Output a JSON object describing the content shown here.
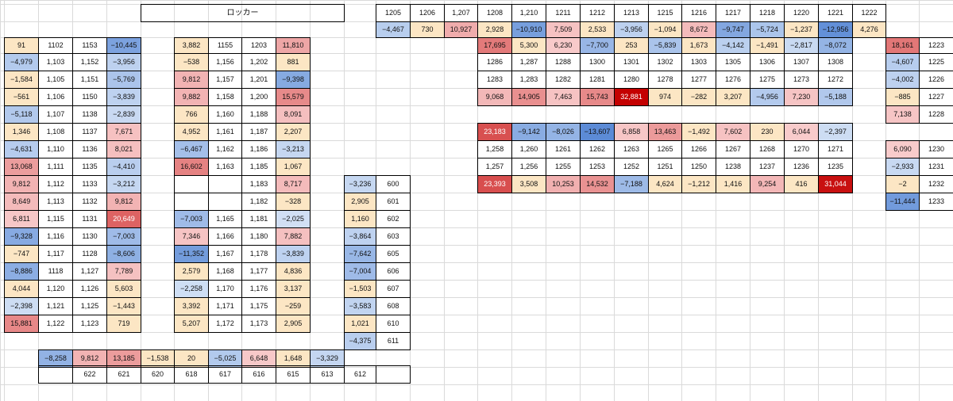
{
  "colors": {
    "gridline": "#dadada",
    "border": "#000000",
    "text": "#111111",
    "scale_min": "#5a8ad6",
    "scale_mid": "#fcfcfc",
    "scale_max": "#c40000",
    "weak_negative": "#fce6c4"
  },
  "row_tops": [
    0,
    5,
    27,
    47,
    67,
    89,
    111,
    133,
    155,
    177,
    199,
    221,
    243,
    265,
    287,
    309,
    331,
    353,
    375,
    397,
    419,
    441,
    463,
    485,
    506
  ],
  "col_lefts": [
    0,
    5,
    48,
    91,
    134,
    177,
    219,
    262,
    304,
    347,
    390,
    433,
    473,
    516,
    559,
    601,
    644,
    687,
    730,
    773,
    816,
    858,
    901,
    944,
    987,
    1030,
    1073,
    1115,
    1157,
    1200
  ],
  "blocks": [
    {
      "id": "locker",
      "rows": [
        [
          {
            "text": "ロッカー",
            "bg": "plain",
            "cls": "title",
            "bordered": true,
            "span": 6
          }
        ]
      ],
      "row0": 1,
      "col0": 5
    },
    {
      "id": "top-header",
      "rows": [
        [
          "1205",
          "1206",
          "1,207",
          "1208",
          "1,210",
          "1211",
          "1212",
          "1213",
          "1215",
          "1216",
          "1217",
          "1218",
          "1220",
          "1221",
          "1222"
        ],
        [
          -4467,
          730,
          10927,
          2928,
          -10910,
          7509,
          2533,
          -3956,
          -1094,
          8672,
          -9747,
          -5724,
          -1237,
          -12956,
          4276
        ]
      ],
      "row0": 1,
      "col0": 12,
      "bordered": true
    },
    {
      "id": "block-a",
      "rows": [
        [
          91,
          "1102",
          "1153",
          -10445
        ],
        [
          -4979,
          "1,103",
          "1,152",
          -3956
        ],
        [
          -1584,
          "1,105",
          "1,151",
          -5769
        ],
        [
          -561,
          "1,106",
          "1150",
          -3839
        ],
        [
          -5118,
          "1,107",
          "1138",
          -2839
        ],
        [
          1346,
          "1,108",
          "1137",
          7671
        ],
        [
          -4631,
          "1,110",
          "1136",
          8021
        ],
        [
          13068,
          "1,111",
          "1135",
          -4410
        ],
        [
          9812,
          "1,112",
          "1133",
          -3212
        ],
        [
          8649,
          "1,113",
          "1132",
          9812
        ],
        [
          6811,
          "1,115",
          "1131",
          20649
        ],
        [
          -9328,
          "1,116",
          "1130",
          -7003
        ],
        [
          -747,
          "1,117",
          "1128",
          -8606
        ],
        [
          -8886,
          "1118",
          "1,127",
          7789
        ],
        [
          4044,
          "1,120",
          "1,126",
          5603
        ],
        [
          -2398,
          "1,121",
          "1,125",
          -1443
        ],
        [
          15881,
          "1,122",
          "1,123",
          719
        ]
      ],
      "row0": 3,
      "col0": 1,
      "bordered": true
    },
    {
      "id": "block-b",
      "rows": [
        [
          3882,
          "1155",
          "1203",
          11810
        ],
        [
          -538,
          "1,156",
          "1,202",
          881
        ],
        [
          9812,
          "1,157",
          "1,201",
          -9398
        ],
        [
          9882,
          "1,158",
          "1,200",
          15579
        ],
        [
          766,
          "1,160",
          "1,188",
          8091
        ],
        [
          4952,
          "1,161",
          "1,187",
          2207
        ],
        [
          -6467,
          "1,162",
          "1,186",
          -3213
        ],
        [
          16602,
          "1,163",
          "1,185",
          1067
        ],
        [
          null,
          null,
          "1,183",
          8717
        ],
        [
          null,
          null,
          "1,182",
          -328
        ],
        [
          -7003,
          "1,165",
          "1,181",
          -2025
        ],
        [
          7346,
          "1,166",
          "1,180",
          7882
        ],
        [
          -11352,
          "1,167",
          "1,178",
          -3839
        ],
        [
          2579,
          "1,168",
          "1,177",
          4836
        ],
        [
          -2258,
          "1,170",
          "1,176",
          3137
        ],
        [
          3392,
          "1,171",
          "1,175",
          -259
        ],
        [
          5207,
          "1,172",
          "1,173",
          2905
        ]
      ],
      "row0": 3,
      "col0": 6,
      "bordered": true
    },
    {
      "id": "block-c",
      "rows": [
        [
          -3236,
          "600"
        ],
        [
          2905,
          "601"
        ],
        [
          1160,
          "602"
        ],
        [
          -3864,
          "603"
        ],
        [
          -7642,
          "605"
        ],
        [
          -7004,
          "606"
        ],
        [
          -1503,
          "607"
        ],
        [
          -3583,
          "608"
        ],
        [
          1021,
          "610"
        ],
        [
          -4375,
          "611"
        ]
      ],
      "row0": 11,
      "col0": 11,
      "bordered": true
    },
    {
      "id": "block-d",
      "rows": [
        [
          -8258,
          9812,
          13185,
          -1538,
          20,
          -5025,
          6648,
          1648,
          -3329
        ],
        [
          null,
          "622",
          "621",
          "620",
          "618",
          "617",
          "616",
          "615",
          "613",
          "612",
          null
        ]
      ],
      "row0": 21,
      "col0": 2,
      "bordered": true,
      "row_offsets": [
        0,
        -2
      ]
    },
    {
      "id": "block-e",
      "rows": [
        [
          17695,
          5300,
          6230,
          -7700,
          253,
          -5839,
          1673,
          -4142,
          -1491,
          -2817,
          -8072
        ],
        [
          "1286",
          "1,287",
          "1288",
          "1300",
          "1301",
          "1302",
          "1303",
          "1305",
          "1306",
          "1307",
          "1308"
        ],
        [
          "1283",
          "1,283",
          "1282",
          "1281",
          "1280",
          "1278",
          "1277",
          "1276",
          "1275",
          "1273",
          "1272"
        ],
        [
          9068,
          14905,
          7463,
          15743,
          32881,
          974,
          -282,
          3207,
          -4956,
          7230,
          -5188
        ]
      ],
      "row0": 3,
      "col0": 15,
      "bordered": true
    },
    {
      "id": "block-f",
      "rows": [
        [
          23183,
          -9142,
          -8026,
          -13607,
          6858,
          13463,
          -1492,
          7602,
          230,
          6044,
          -2397
        ],
        [
          "1,258",
          "1,260",
          "1261",
          "1262",
          "1263",
          "1265",
          "1266",
          "1267",
          "1268",
          "1270",
          "1271"
        ],
        [
          "1,257",
          "1,256",
          "1255",
          "1253",
          "1252",
          "1251",
          "1250",
          "1238",
          "1237",
          "1236",
          "1235"
        ],
        [
          23393,
          3508,
          10253,
          14532,
          -7188,
          4624,
          -1212,
          1416,
          9254,
          416,
          31044
        ]
      ],
      "row0": 8,
      "col0": 15,
      "bordered": true
    },
    {
      "id": "block-g",
      "rows": [
        [
          18161,
          "1223"
        ],
        [
          -4607,
          "1225"
        ],
        [
          -4002,
          "1226"
        ],
        [
          -885,
          "1227"
        ],
        [
          7138,
          "1228"
        ],
        [
          null,
          null
        ],
        [
          6090,
          "1230"
        ],
        [
          -2933,
          "1231"
        ],
        [
          -2,
          "1232"
        ],
        [
          -11444,
          "1233"
        ]
      ],
      "row0": 3,
      "col0": 27,
      "bordered": true,
      "skip_border_rows": [
        5
      ]
    }
  ]
}
